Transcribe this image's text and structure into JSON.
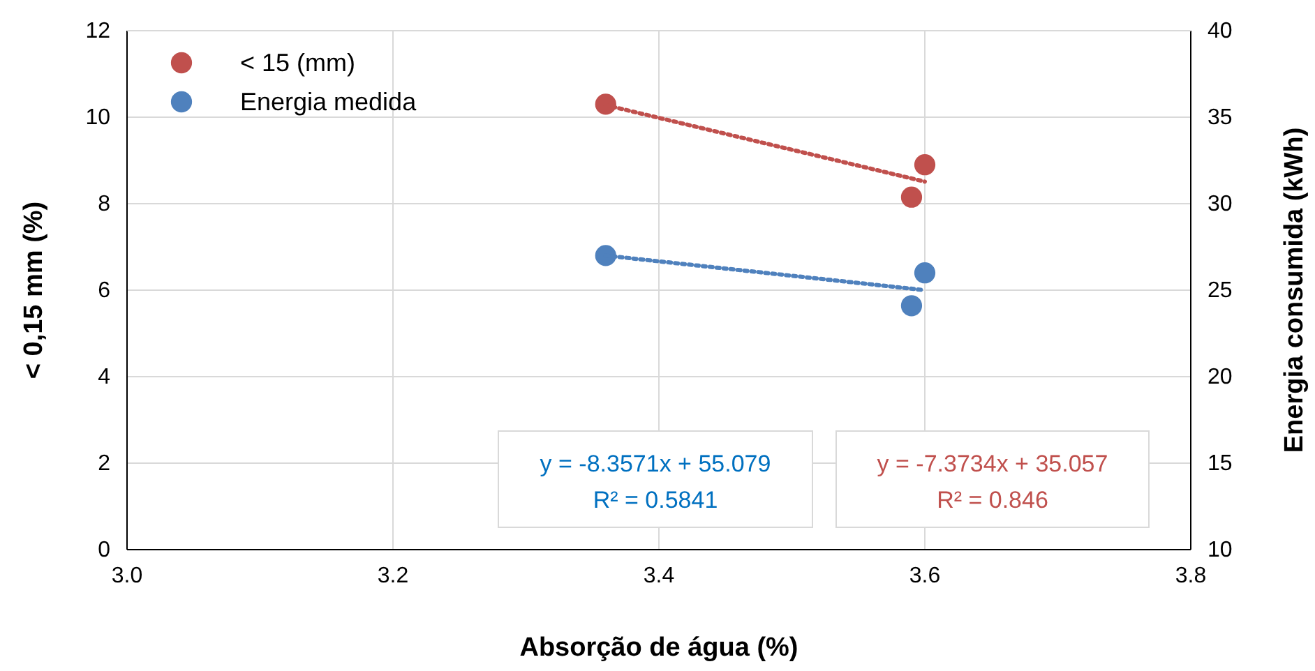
{
  "chart_data": {
    "type": "scatter",
    "xlabel": "Absorção de água (%)",
    "ylabel": "< 0,15 mm (%)",
    "y2label": "Energia consumida (kWh)",
    "xlim": [
      3.0,
      3.8
    ],
    "xticks": [
      {
        "value": 3.0,
        "label": "3.0"
      },
      {
        "value": 3.2,
        "label": "3.2"
      },
      {
        "value": 3.4,
        "label": "3.4"
      },
      {
        "value": 3.6,
        "label": "3.6"
      },
      {
        "value": 3.8,
        "label": "3.8"
      }
    ],
    "ylim": [
      0,
      12
    ],
    "yticks": [
      0,
      2,
      4,
      6,
      8,
      10,
      12
    ],
    "y2lim": [
      10,
      40
    ],
    "y2ticks": [
      10,
      15,
      20,
      25,
      30,
      35,
      40
    ],
    "grid": true,
    "legend": "top left",
    "marker": "circle",
    "series": [
      {
        "name": "< 15 (mm)",
        "color": "#c0504d",
        "x": [
          3.36,
          3.59,
          3.6
        ],
        "values": [
          10.3,
          8.15,
          8.9
        ]
      },
      {
        "name": "Energia medida",
        "color": "#4f81bd",
        "axis": "y2",
        "x": [
          3.36,
          3.59,
          3.6
        ],
        "values": [
          27.0,
          24.1,
          26.0
        ]
      },
      {
        "type": "line",
        "marker": "none",
        "color": "#c0504d",
        "line_style": "dotted",
        "x": [
          3.36,
          3.6
        ],
        "values": [
          10.28,
          8.51
        ]
      },
      {
        "type": "line",
        "marker": "none",
        "color": "#4f81bd",
        "line_style": "dotted",
        "axis": "y2",
        "x": [
          3.36,
          3.6
        ],
        "values": [
          27.0,
          25.0
        ]
      }
    ],
    "annotations": [
      "y = -8.3571x + 55.079",
      "R² = 0.5841",
      "y = -7.3734x + 35.057",
      "R² = 0.846"
    ]
  }
}
